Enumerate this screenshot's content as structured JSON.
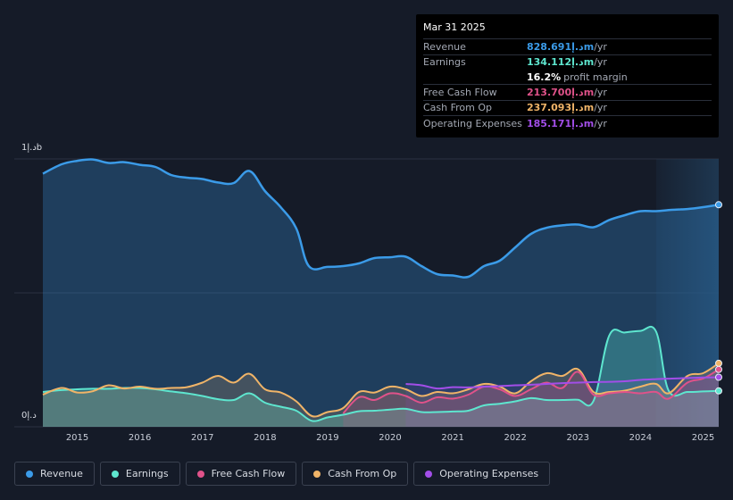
{
  "tooltip": {
    "date": "Mar 31 2025",
    "rows": [
      {
        "label": "Revenue",
        "value": "828.691د.إm",
        "unit": " /yr",
        "color": "#3b9be8"
      },
      {
        "label": "Earnings",
        "value": "134.112د.إm",
        "unit": " /yr",
        "color": "#5ee6cf"
      },
      {
        "label": "Free Cash Flow",
        "value": "213.700د.إm",
        "unit": " /yr",
        "color": "#e0528a"
      },
      {
        "label": "Cash From Op",
        "value": "237.093د.إm",
        "unit": " /yr",
        "color": "#f0b468"
      },
      {
        "label": "Operating Expenses",
        "value": "185.171د.إm",
        "unit": " /yr",
        "color": "#a24ee8"
      }
    ],
    "profit_margin_value": "16.2%",
    "profit_margin_label": "profit margin"
  },
  "chart_data": {
    "type": "area",
    "y_tick_labels": [
      "1د.إb",
      "0د.إ"
    ],
    "ylim": [
      0,
      1000
    ],
    "xlim": [
      2014.45,
      2025.25
    ],
    "x_tick_labels": [
      "2015",
      "2016",
      "2017",
      "2018",
      "2019",
      "2020",
      "2021",
      "2022",
      "2023",
      "2024",
      "2025"
    ],
    "x_ticks": [
      2015,
      2016,
      2017,
      2018,
      2019,
      2020,
      2021,
      2022,
      2023,
      2024,
      2025
    ],
    "highlight_from": 2024.25,
    "series": [
      {
        "name": "Revenue",
        "color": "#3b9be8",
        "points": [
          [
            2014.45,
            945
          ],
          [
            2014.75,
            980
          ],
          [
            2015.0,
            993
          ],
          [
            2015.25,
            998
          ],
          [
            2015.5,
            985
          ],
          [
            2015.75,
            988
          ],
          [
            2016.0,
            978
          ],
          [
            2016.25,
            970
          ],
          [
            2016.5,
            940
          ],
          [
            2016.75,
            930
          ],
          [
            2017.0,
            925
          ],
          [
            2017.25,
            912
          ],
          [
            2017.5,
            910
          ],
          [
            2017.75,
            955
          ],
          [
            2018.0,
            880
          ],
          [
            2018.25,
            820
          ],
          [
            2018.5,
            740
          ],
          [
            2018.7,
            600
          ],
          [
            2019.0,
            597
          ],
          [
            2019.25,
            600
          ],
          [
            2019.5,
            610
          ],
          [
            2019.75,
            630
          ],
          [
            2020.0,
            633
          ],
          [
            2020.25,
            635
          ],
          [
            2020.5,
            600
          ],
          [
            2020.75,
            570
          ],
          [
            2021.0,
            565
          ],
          [
            2021.25,
            560
          ],
          [
            2021.5,
            600
          ],
          [
            2021.75,
            620
          ],
          [
            2022.0,
            670
          ],
          [
            2022.25,
            720
          ],
          [
            2022.5,
            743
          ],
          [
            2022.75,
            752
          ],
          [
            2023.0,
            755
          ],
          [
            2023.25,
            745
          ],
          [
            2023.5,
            772
          ],
          [
            2023.75,
            790
          ],
          [
            2024.0,
            805
          ],
          [
            2024.25,
            805
          ],
          [
            2024.5,
            810
          ],
          [
            2024.75,
            813
          ],
          [
            2025.0,
            820
          ],
          [
            2025.25,
            829
          ]
        ]
      },
      {
        "name": "Earnings",
        "color": "#5ee6cf",
        "points": [
          [
            2014.45,
            130
          ],
          [
            2014.75,
            137
          ],
          [
            2015.0,
            140
          ],
          [
            2015.25,
            142
          ],
          [
            2015.5,
            142
          ],
          [
            2015.75,
            145
          ],
          [
            2016.0,
            145
          ],
          [
            2016.25,
            140
          ],
          [
            2016.5,
            132
          ],
          [
            2016.75,
            125
          ],
          [
            2017.0,
            115
          ],
          [
            2017.25,
            103
          ],
          [
            2017.5,
            100
          ],
          [
            2017.75,
            125
          ],
          [
            2018.0,
            90
          ],
          [
            2018.25,
            75
          ],
          [
            2018.5,
            60
          ],
          [
            2018.75,
            22
          ],
          [
            2019.0,
            35
          ],
          [
            2019.25,
            45
          ],
          [
            2019.5,
            58
          ],
          [
            2019.75,
            60
          ],
          [
            2020.0,
            64
          ],
          [
            2020.25,
            67
          ],
          [
            2020.5,
            55
          ],
          [
            2020.75,
            55
          ],
          [
            2021.0,
            57
          ],
          [
            2021.25,
            60
          ],
          [
            2021.5,
            80
          ],
          [
            2021.75,
            86
          ],
          [
            2022.0,
            95
          ],
          [
            2022.25,
            107
          ],
          [
            2022.5,
            100
          ],
          [
            2022.75,
            100
          ],
          [
            2023.0,
            101
          ],
          [
            2023.25,
            97
          ],
          [
            2023.5,
            340
          ],
          [
            2023.75,
            352
          ],
          [
            2024.0,
            358
          ],
          [
            2024.25,
            355
          ],
          [
            2024.45,
            135
          ],
          [
            2024.75,
            130
          ],
          [
            2025.0,
            132
          ],
          [
            2025.25,
            134
          ]
        ]
      },
      {
        "name": "Free Cash Flow",
        "color": "#e0528a",
        "points": [
          [
            2019.25,
            50
          ],
          [
            2019.5,
            110
          ],
          [
            2019.75,
            100
          ],
          [
            2020.0,
            125
          ],
          [
            2020.25,
            115
          ],
          [
            2020.5,
            90
          ],
          [
            2020.75,
            110
          ],
          [
            2021.0,
            105
          ],
          [
            2021.25,
            120
          ],
          [
            2021.5,
            150
          ],
          [
            2021.75,
            140
          ],
          [
            2022.0,
            115
          ],
          [
            2022.25,
            140
          ],
          [
            2022.5,
            165
          ],
          [
            2022.75,
            145
          ],
          [
            2023.0,
            205
          ],
          [
            2023.25,
            120
          ],
          [
            2023.5,
            125
          ],
          [
            2023.75,
            130
          ],
          [
            2024.0,
            125
          ],
          [
            2024.25,
            130
          ],
          [
            2024.45,
            105
          ],
          [
            2024.75,
            165
          ],
          [
            2025.0,
            180
          ],
          [
            2025.25,
            214
          ]
        ]
      },
      {
        "name": "Cash From Op",
        "color": "#f0b468",
        "points": [
          [
            2014.45,
            120
          ],
          [
            2014.75,
            145
          ],
          [
            2015.0,
            128
          ],
          [
            2015.25,
            133
          ],
          [
            2015.5,
            155
          ],
          [
            2015.75,
            143
          ],
          [
            2016.0,
            150
          ],
          [
            2016.25,
            142
          ],
          [
            2016.5,
            145
          ],
          [
            2016.75,
            148
          ],
          [
            2017.0,
            165
          ],
          [
            2017.25,
            190
          ],
          [
            2017.5,
            165
          ],
          [
            2017.75,
            198
          ],
          [
            2018.0,
            140
          ],
          [
            2018.25,
            128
          ],
          [
            2018.5,
            95
          ],
          [
            2018.75,
            40
          ],
          [
            2019.0,
            55
          ],
          [
            2019.25,
            70
          ],
          [
            2019.5,
            130
          ],
          [
            2019.75,
            128
          ],
          [
            2020.0,
            150
          ],
          [
            2020.25,
            140
          ],
          [
            2020.5,
            115
          ],
          [
            2020.75,
            130
          ],
          [
            2021.0,
            125
          ],
          [
            2021.25,
            140
          ],
          [
            2021.5,
            160
          ],
          [
            2021.75,
            150
          ],
          [
            2022.0,
            125
          ],
          [
            2022.25,
            170
          ],
          [
            2022.5,
            200
          ],
          [
            2022.75,
            190
          ],
          [
            2023.0,
            215
          ],
          [
            2023.25,
            130
          ],
          [
            2023.5,
            130
          ],
          [
            2023.75,
            135
          ],
          [
            2024.0,
            150
          ],
          [
            2024.25,
            160
          ],
          [
            2024.45,
            125
          ],
          [
            2024.75,
            190
          ],
          [
            2025.0,
            200
          ],
          [
            2025.25,
            237
          ]
        ]
      },
      {
        "name": "Operating Expenses",
        "color": "#a24ee8",
        "points": [
          [
            2020.25,
            160
          ],
          [
            2020.5,
            155
          ],
          [
            2020.75,
            143
          ],
          [
            2021.0,
            148
          ],
          [
            2021.25,
            147
          ],
          [
            2021.5,
            150
          ],
          [
            2021.75,
            152
          ],
          [
            2022.0,
            155
          ],
          [
            2022.25,
            157
          ],
          [
            2022.5,
            160
          ],
          [
            2022.75,
            163
          ],
          [
            2023.0,
            165
          ],
          [
            2023.25,
            167
          ],
          [
            2023.5,
            168
          ],
          [
            2023.75,
            170
          ],
          [
            2024.0,
            175
          ],
          [
            2024.25,
            178
          ],
          [
            2024.5,
            180
          ],
          [
            2024.75,
            182
          ],
          [
            2025.0,
            184
          ],
          [
            2025.25,
            185
          ]
        ]
      }
    ]
  },
  "legend": [
    {
      "label": "Revenue",
      "color": "#3b9be8"
    },
    {
      "label": "Earnings",
      "color": "#5ee6cf"
    },
    {
      "label": "Free Cash Flow",
      "color": "#e0528a"
    },
    {
      "label": "Cash From Op",
      "color": "#f0b468"
    },
    {
      "label": "Operating Expenses",
      "color": "#a24ee8"
    }
  ]
}
